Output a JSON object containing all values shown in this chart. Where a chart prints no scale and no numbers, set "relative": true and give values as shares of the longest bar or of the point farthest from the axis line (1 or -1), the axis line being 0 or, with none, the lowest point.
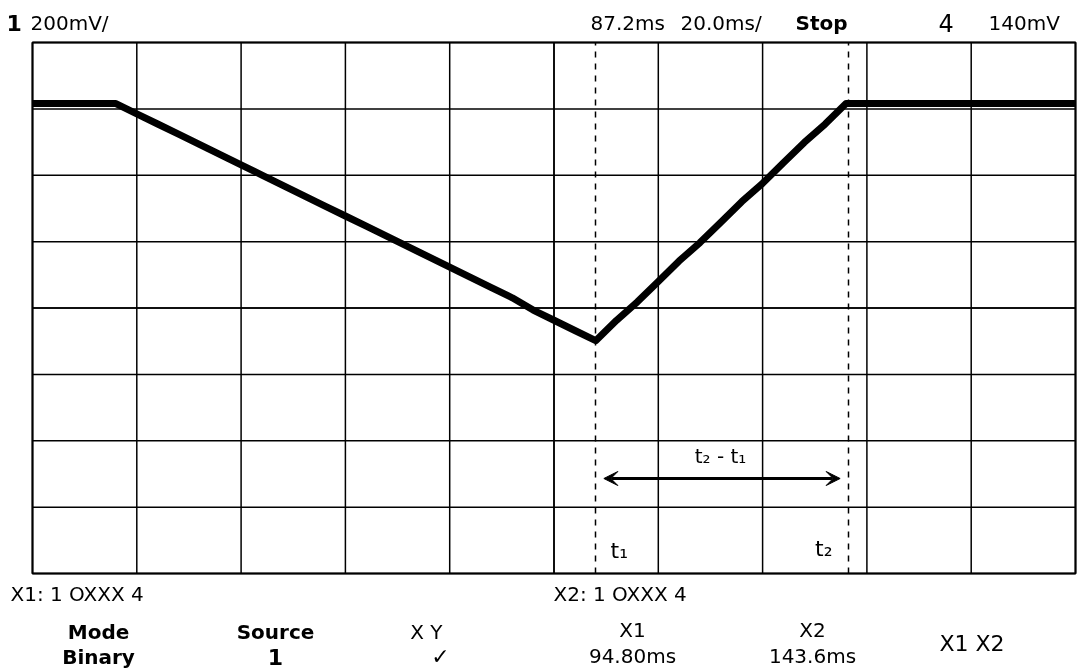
{
  "chart_data": {
    "type": "line",
    "relative": true,
    "categories": [
      null,
      null,
      null,
      null,
      null,
      null,
      null,
      null,
      null,
      null,
      null,
      null,
      null,
      null,
      null,
      null,
      null,
      null,
      null,
      null,
      null,
      null,
      null,
      null,
      null,
      null,
      null,
      null,
      null,
      null,
      null,
      null,
      null,
      null,
      null,
      null,
      null,
      null,
      null,
      null,
      null,
      null,
      null,
      null,
      null,
      null,
      null,
      null,
      null,
      null,
      null
    ],
    "series": [
      {
        "color": "#000000",
        "values": [
          1,
          1,
          1,
          1,
          1,
          0.95,
          0.9,
          0.85,
          0.8,
          0.75,
          0.7,
          0.65,
          0.6,
          0.55,
          0.5,
          0.45,
          0.4,
          0.35,
          0.3,
          0.25,
          0.2,
          0.15,
          0.1,
          0.05,
          -0.01,
          -0.06,
          -0.11,
          -0.16,
          -0.06,
          0.03,
          0.13,
          0.23,
          0.32,
          0.42,
          0.52,
          0.61,
          0.71,
          0.81,
          0.9,
          1,
          1,
          1,
          1,
          1,
          1,
          1,
          1,
          1,
          1,
          1,
          1
        ]
      }
    ],
    "grid": true,
    "line_style": "solid",
    "annotations": [
      "1",
      "200mV/",
      "87.2ms",
      "20.0ms/",
      "Stop",
      "4",
      "140mV",
      "X1:  1  OXXX  4",
      "X2:  1  OXXX  4",
      "Mode",
      "Binary",
      "Source",
      "1",
      "X       Y",
      "✓",
      "X1",
      "94.80ms",
      "X2",
      "143.6ms",
      "X1  X2",
      "t₁",
      "t₂",
      "t₂ - t₁"
    ]
  }
}
